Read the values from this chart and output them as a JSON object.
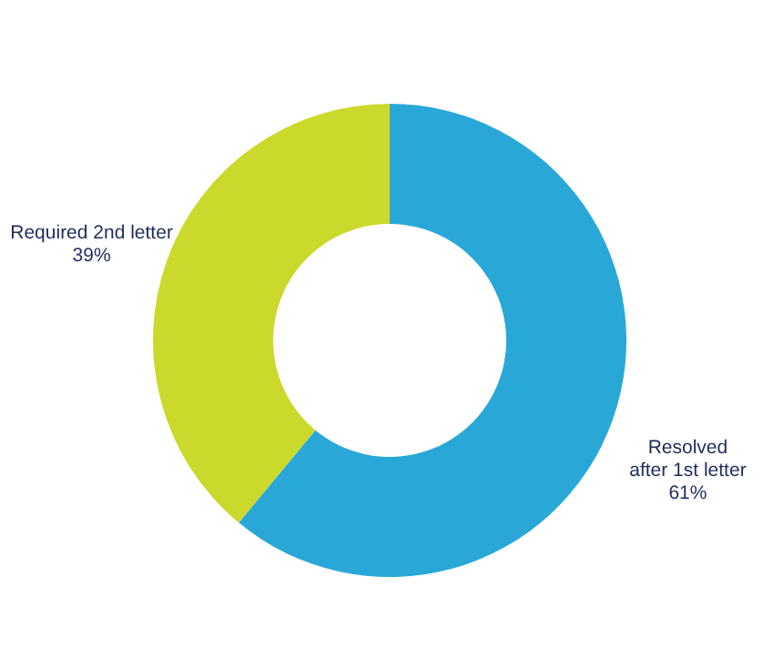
{
  "chart_data": {
    "type": "donut",
    "categories": [
      "Resolved\nafter 1st letter",
      "Required 2nd letter"
    ],
    "values": [
      61,
      39
    ],
    "colors": [
      "#29a8d8",
      "#cbd92c"
    ],
    "value_labels": [
      "61%",
      "39%"
    ]
  }
}
